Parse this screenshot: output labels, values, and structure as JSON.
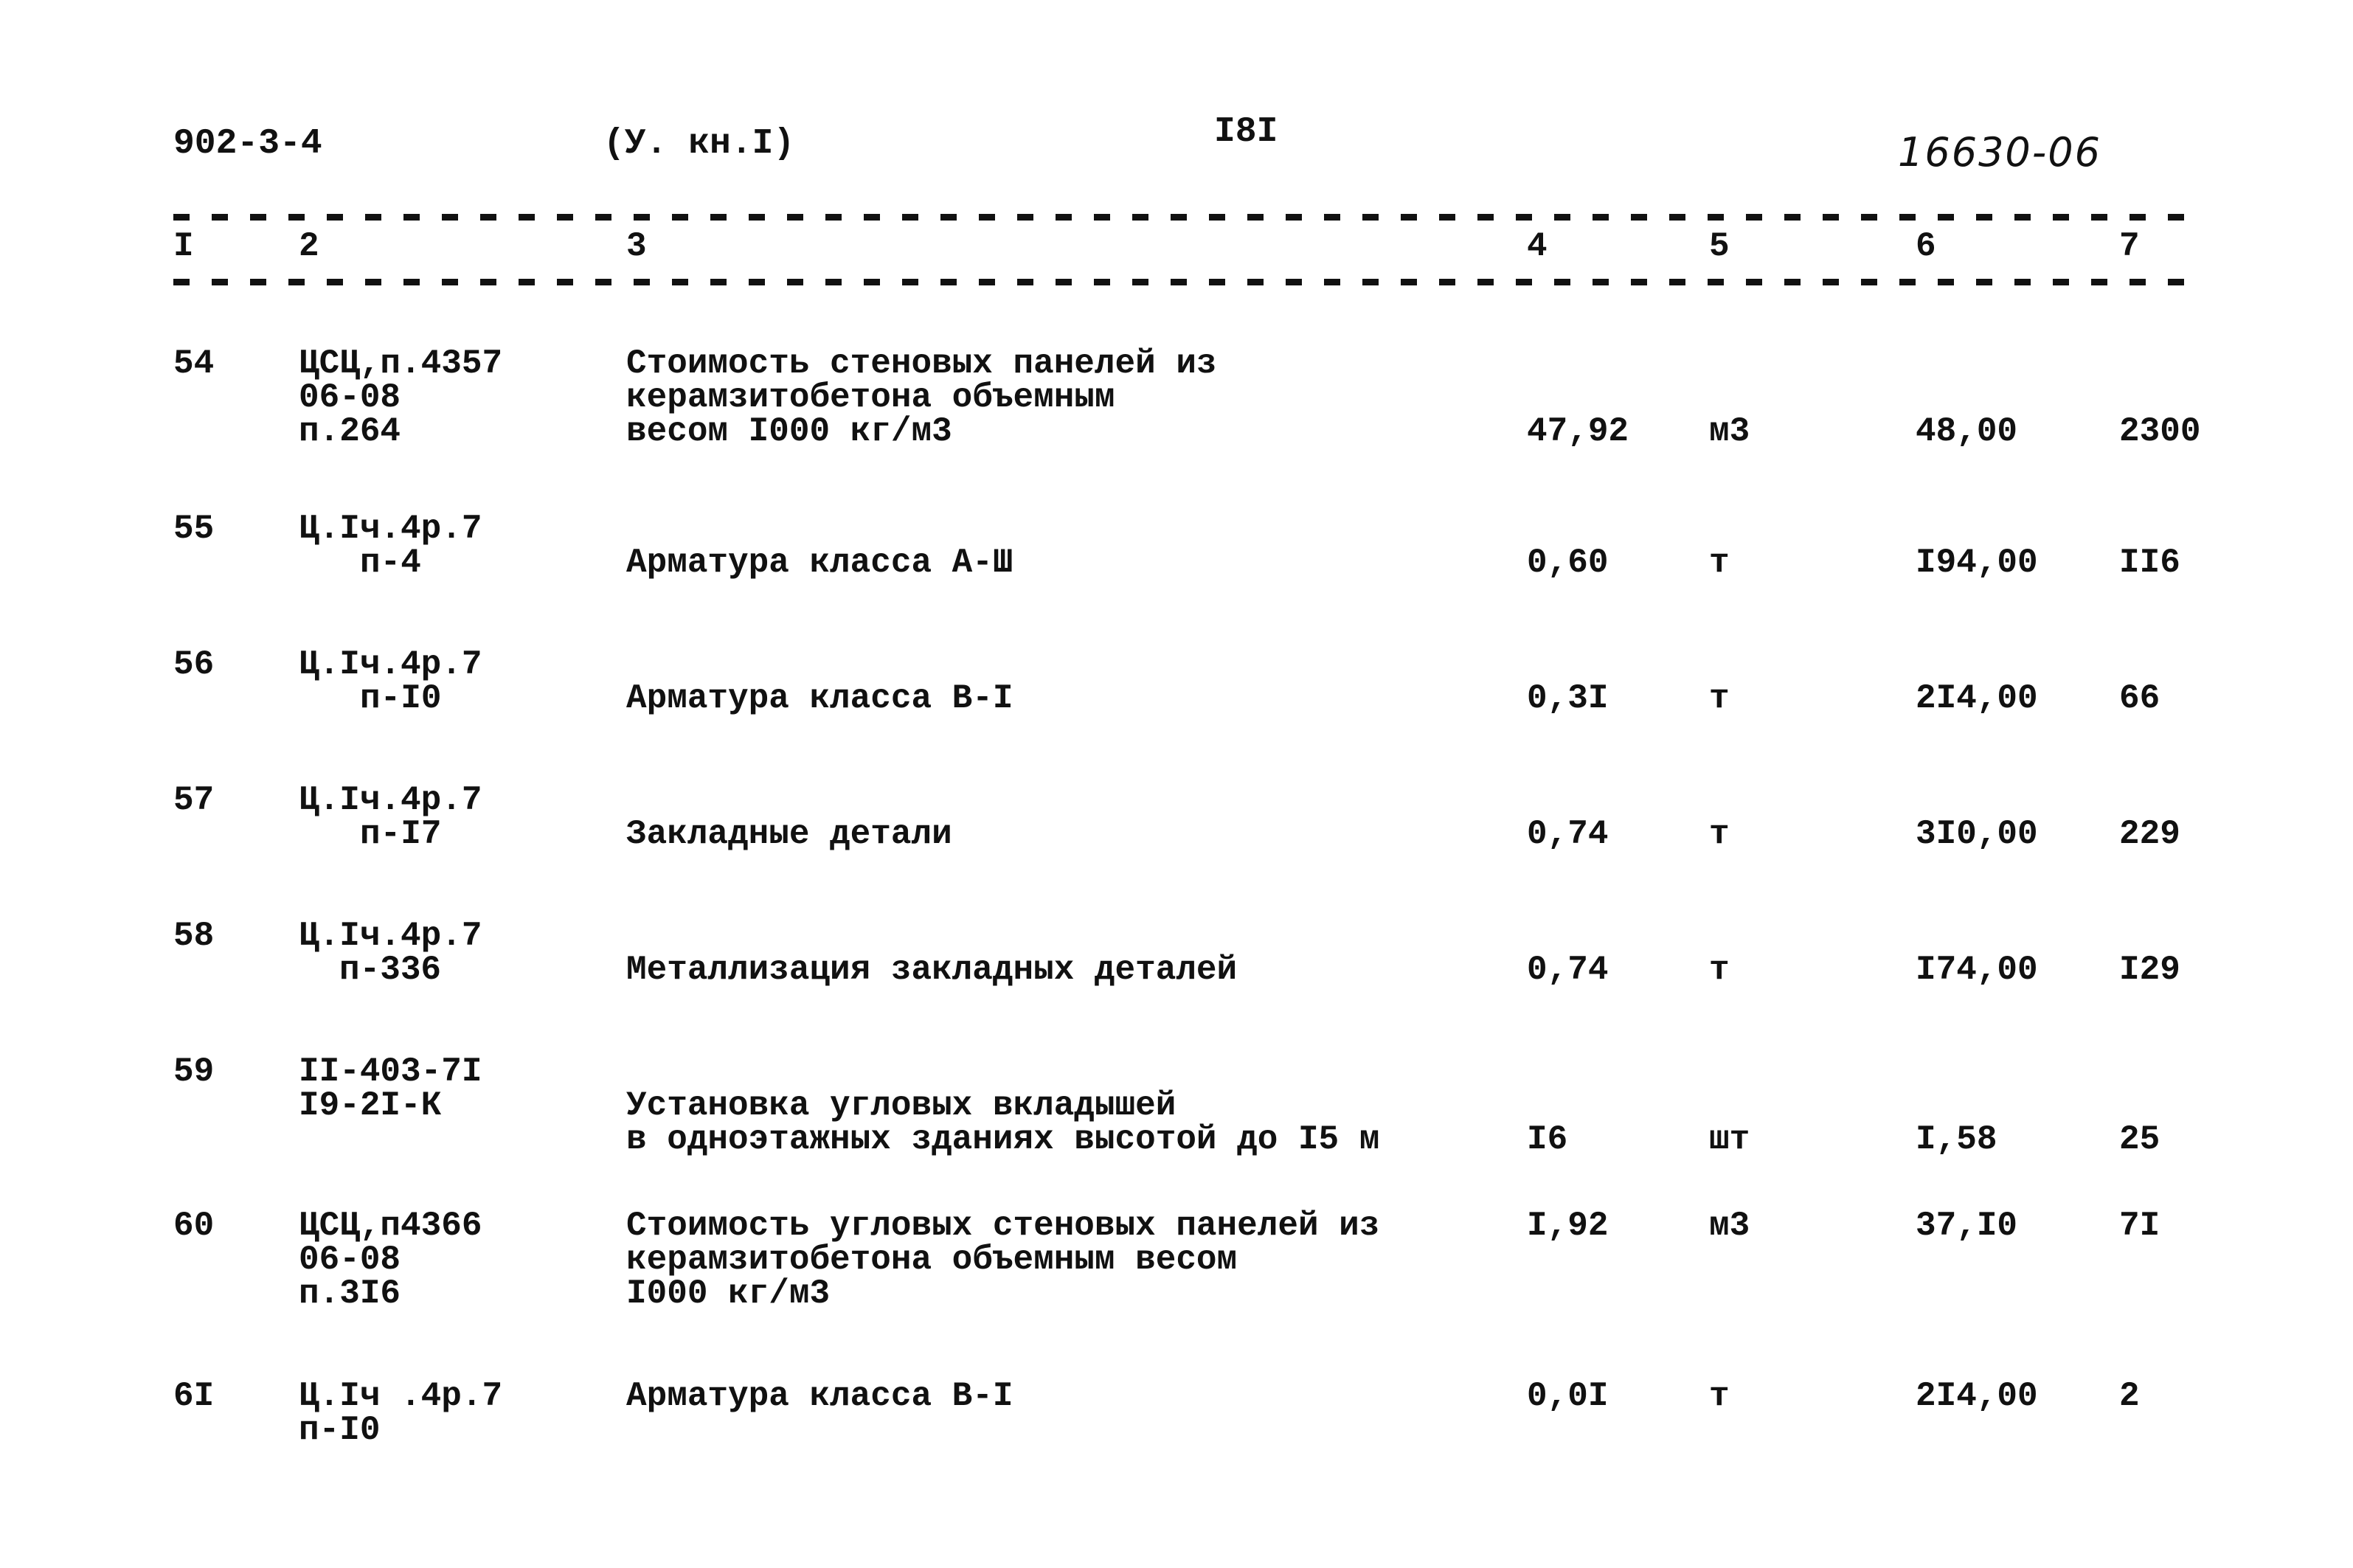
{
  "header": {
    "series": "902-3-4",
    "volume": "(У. кн.I)",
    "page_number": "I8I",
    "archive_number": "16630-06"
  },
  "columns": [
    "I",
    "2",
    "3",
    "4",
    "5",
    "6",
    "7"
  ],
  "rows": [
    {
      "num": "54",
      "code": [
        "ЦСЦ,п.4357",
        "06-08",
        "п.264"
      ],
      "desc": [
        "Стоимость стеновых панелей из",
        "керамзитобетона объемным",
        "весом I000 кг/м3"
      ],
      "qty": "47,92",
      "unit": "м3",
      "price": "48,00",
      "total": "2300"
    },
    {
      "num": "55",
      "code": [
        "Ц.Iч.4р.7",
        "п-4"
      ],
      "desc": [
        "Арматура класса А-Ш"
      ],
      "qty": "0,60",
      "unit": "т",
      "price": "I94,00",
      "total": "II6"
    },
    {
      "num": "56",
      "code": [
        "Ц.Iч.4р.7",
        "п-I0"
      ],
      "desc": [
        "Арматура класса В-I"
      ],
      "qty": "0,3I",
      "unit": "т",
      "price": "2I4,00",
      "total": "66"
    },
    {
      "num": "57",
      "code": [
        "Ц.Iч.4р.7",
        "п-I7"
      ],
      "desc": [
        "Закладные детали"
      ],
      "qty": "0,74",
      "unit": "т",
      "price": "3I0,00",
      "total": "229"
    },
    {
      "num": "58",
      "code": [
        "Ц.Iч.4р.7",
        "п-336"
      ],
      "desc": [
        "Металлизация закладных деталей"
      ],
      "qty": "0,74",
      "unit": "т",
      "price": "I74,00",
      "total": "I29"
    },
    {
      "num": "59",
      "code": [
        "II-403-7I",
        "I9-2I-К"
      ],
      "desc": [
        "Установка угловых вкладышей",
        "в одноэтажных зданиях высотой до I5 м"
      ],
      "qty": "I6",
      "unit": "шт",
      "price": "I,58",
      "total": "25"
    },
    {
      "num": "60",
      "code": [
        "ЦСЦ,п4366",
        "06-08",
        "п.3I6"
      ],
      "desc": [
        "Стоимость угловых стеновых панелей из",
        "керамзитобетона объемным весом",
        "I000 кг/м3"
      ],
      "qty": "I,92",
      "unit": "м3",
      "price": "37,I0",
      "total": "7I"
    },
    {
      "num": "6I",
      "code": [
        "Ц.Iч .4р.7",
        "п-I0"
      ],
      "desc": [
        "Арматура класса В-I"
      ],
      "qty": "0,0I",
      "unit": "т",
      "price": "2I4,00",
      "total": "2"
    }
  ]
}
